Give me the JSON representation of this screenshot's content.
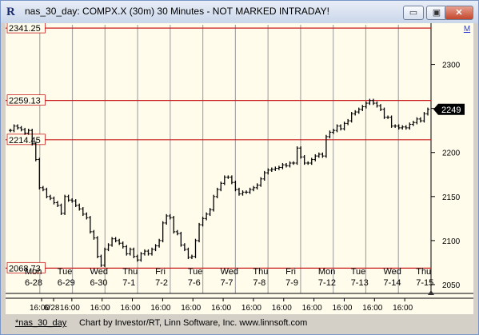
{
  "window": {
    "title": "nas_30_day: COMPX.X (30m) 30 Minutes - NOT MARKED INTRADAY!",
    "app_icon_letter": "R",
    "minimize_label": "▭",
    "maximize_label": "▣",
    "close_label": "✕"
  },
  "chart_toolbar": {
    "marker_label": "M"
  },
  "chart_data": {
    "type": "candlestick",
    "title": "",
    "ylim": [
      2040,
      2345
    ],
    "y_ticks": [
      2050,
      2100,
      2150,
      2200,
      2250,
      2300
    ],
    "current_price": {
      "value": 2249,
      "label": "2249"
    },
    "horizontal_lines": [
      {
        "value": 2341.25,
        "label": "2341.25"
      },
      {
        "value": 2259.13,
        "label": "2259.13"
      },
      {
        "value": 2214.45,
        "label": "2214.45"
      },
      {
        "value": 2068.73,
        "label": "2068.73"
      }
    ],
    "days": [
      {
        "weekday": "Mon",
        "date": "6-28"
      },
      {
        "weekday": "Tue",
        "date": "6-29"
      },
      {
        "weekday": "Wed",
        "date": "6-30"
      },
      {
        "weekday": "Thu",
        "date": "7-1"
      },
      {
        "weekday": "Fri",
        "date": "7-2"
      },
      {
        "weekday": "Tue",
        "date": "7-6"
      },
      {
        "weekday": "Wed",
        "date": "7-7"
      },
      {
        "weekday": "Thu",
        "date": "7-8"
      },
      {
        "weekday": "Fri",
        "date": "7-9"
      },
      {
        "weekday": "Mon",
        "date": "7-12"
      },
      {
        "weekday": "Tue",
        "date": "7-13"
      },
      {
        "weekday": "Wed",
        "date": "7-14"
      },
      {
        "weekday": "Thu",
        "date": "7-15"
      }
    ],
    "x_tick_labels": [
      "6/28",
      "16:00",
      "16:00",
      "16:00",
      "16:00",
      "16:00",
      "16:00",
      "16:00",
      "16:00",
      "16:00",
      "16:00",
      "16:00",
      "16:00",
      "16:00"
    ],
    "price_path": [
      [
        0,
        2225
      ],
      [
        1,
        2230
      ],
      [
        2,
        2228
      ],
      [
        3,
        2226
      ],
      [
        4,
        2222
      ],
      [
        5,
        2225
      ],
      [
        6,
        2210
      ],
      [
        7,
        2192
      ],
      [
        8,
        2160
      ],
      [
        9,
        2158
      ],
      [
        10,
        2150
      ],
      [
        11,
        2148
      ],
      [
        12,
        2143
      ],
      [
        13,
        2140
      ],
      [
        14,
        2131
      ],
      [
        15,
        2150
      ],
      [
        16,
        2146
      ],
      [
        17,
        2145
      ],
      [
        18,
        2140
      ],
      [
        19,
        2136
      ],
      [
        20,
        2130
      ],
      [
        21,
        2126
      ],
      [
        22,
        2110
      ],
      [
        23,
        2103
      ],
      [
        24,
        2082
      ],
      [
        25,
        2072
      ],
      [
        26,
        2090
      ],
      [
        27,
        2095
      ],
      [
        28,
        2102
      ],
      [
        29,
        2100
      ],
      [
        30,
        2097
      ],
      [
        31,
        2093
      ],
      [
        32,
        2085
      ],
      [
        33,
        2090
      ],
      [
        34,
        2082
      ],
      [
        35,
        2078
      ],
      [
        36,
        2085
      ],
      [
        37,
        2088
      ],
      [
        38,
        2085
      ],
      [
        39,
        2090
      ],
      [
        40,
        2094
      ],
      [
        41,
        2100
      ],
      [
        42,
        2120
      ],
      [
        43,
        2128
      ],
      [
        44,
        2126
      ],
      [
        45,
        2110
      ],
      [
        46,
        2108
      ],
      [
        47,
        2095
      ],
      [
        48,
        2090
      ],
      [
        49,
        2081
      ],
      [
        50,
        2082
      ],
      [
        51,
        2100
      ],
      [
        52,
        2118
      ],
      [
        53,
        2125
      ],
      [
        54,
        2130
      ],
      [
        55,
        2135
      ],
      [
        56,
        2150
      ],
      [
        57,
        2158
      ],
      [
        58,
        2165
      ],
      [
        59,
        2172
      ],
      [
        60,
        2172
      ],
      [
        61,
        2166
      ],
      [
        62,
        2158
      ],
      [
        63,
        2153
      ],
      [
        64,
        2155
      ],
      [
        65,
        2155
      ],
      [
        66,
        2158
      ],
      [
        67,
        2160
      ],
      [
        68,
        2163
      ],
      [
        69,
        2170
      ],
      [
        70,
        2177
      ],
      [
        71,
        2180
      ],
      [
        72,
        2181
      ],
      [
        73,
        2182
      ],
      [
        74,
        2183
      ],
      [
        75,
        2186
      ],
      [
        76,
        2185
      ],
      [
        77,
        2188
      ],
      [
        78,
        2188
      ],
      [
        79,
        2205
      ],
      [
        80,
        2195
      ],
      [
        81,
        2188
      ],
      [
        82,
        2188
      ],
      [
        83,
        2192
      ],
      [
        84,
        2196
      ],
      [
        85,
        2198
      ],
      [
        86,
        2196
      ],
      [
        87,
        2218
      ],
      [
        88,
        2223
      ],
      [
        89,
        2225
      ],
      [
        90,
        2230
      ],
      [
        91,
        2227
      ],
      [
        92,
        2233
      ],
      [
        93,
        2236
      ],
      [
        94,
        2244
      ],
      [
        95,
        2246
      ],
      [
        96,
        2249
      ],
      [
        97,
        2252
      ],
      [
        98,
        2256
      ],
      [
        99,
        2259
      ],
      [
        100,
        2256
      ],
      [
        101,
        2253
      ],
      [
        102,
        2249
      ],
      [
        103,
        2240
      ],
      [
        104,
        2240
      ],
      [
        105,
        2230
      ],
      [
        106,
        2230
      ],
      [
        107,
        2228
      ],
      [
        108,
        2229
      ],
      [
        109,
        2228
      ],
      [
        110,
        2232
      ],
      [
        111,
        2234
      ],
      [
        112,
        2238
      ],
      [
        113,
        2236
      ],
      [
        114,
        2244
      ],
      [
        115,
        2249
      ]
    ]
  },
  "statusbar": {
    "symbol": "*nas_30_day",
    "credit": "Chart by Investor/RT, Linn Software, Inc. www.linnsoft.com"
  },
  "colors": {
    "chart_background": "#fffcec",
    "level_line": "#c81c1c",
    "price_bar": "#000000",
    "grid": "#a8a8a8"
  }
}
